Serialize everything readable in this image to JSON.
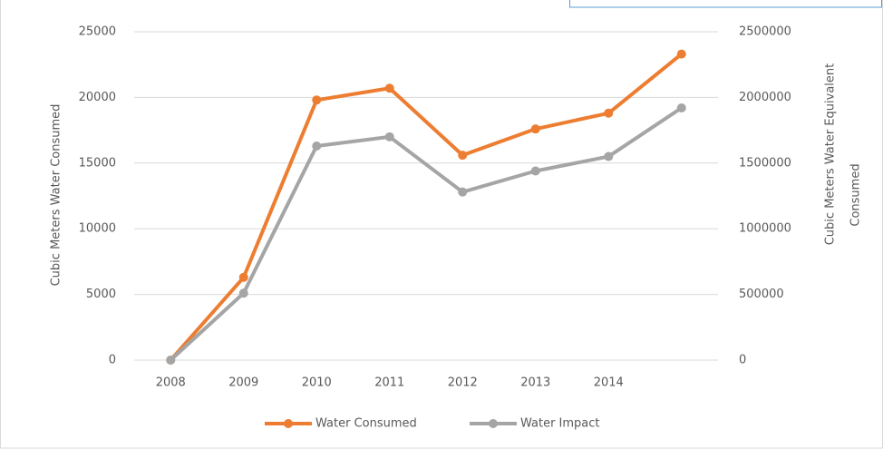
{
  "chart_data": {
    "type": "line",
    "categories": [
      "2008",
      "2009",
      "2010",
      "2011",
      "2012",
      "2013",
      "2014",
      null
    ],
    "series": [
      {
        "name": "Water Consumed",
        "color": "#ed7d31",
        "values": [
          0,
          6300,
          19800,
          20700,
          15600,
          17600,
          18800,
          23300
        ]
      },
      {
        "name": "Water Impact",
        "color": "#a5a5a5",
        "axis": "y2",
        "values": [
          0,
          510000,
          1630000,
          1700000,
          1280000,
          1440000,
          1550000,
          1920000
        ]
      }
    ],
    "y_label": "Cubic Meters Water Consumed",
    "y2_label": [
      "Cubic Meters Water Equivalent",
      "Consumed"
    ],
    "ylim": [
      0,
      25000
    ],
    "yticks": [
      0,
      5000,
      10000,
      15000,
      20000,
      25000
    ],
    "y2lim": [
      0,
      2500000
    ],
    "y2ticks": [
      0,
      500000,
      1000000,
      1500000,
      2000000,
      2500000
    ],
    "grid": true,
    "legend": "bottom"
  }
}
